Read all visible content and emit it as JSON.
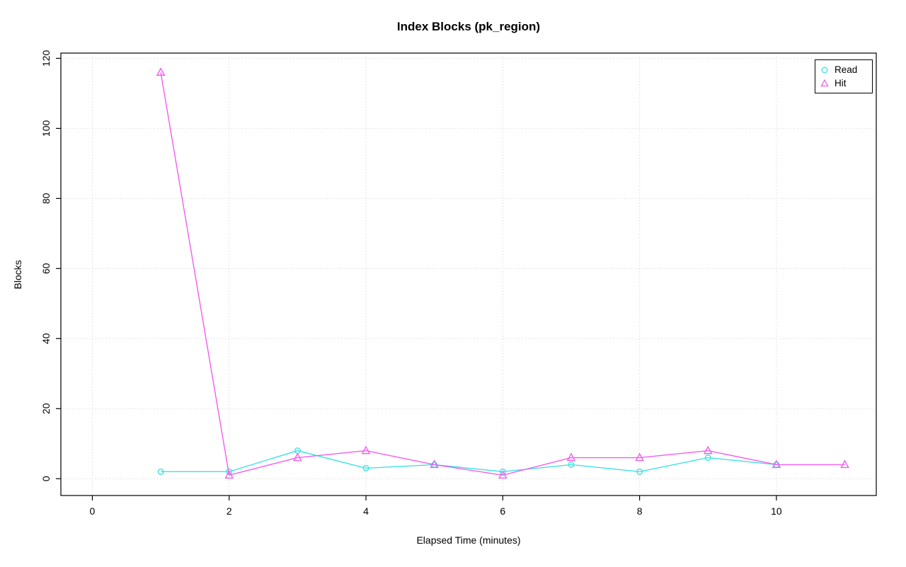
{
  "title": "Index Blocks (pk_region)",
  "chart_data": {
    "type": "line",
    "title": "Index Blocks (pk_region)",
    "xlabel": "Elapsed Time (minutes)",
    "ylabel": "Blocks",
    "x_ticks": [
      0,
      2,
      4,
      6,
      8,
      10
    ],
    "y_ticks": [
      0,
      20,
      40,
      60,
      80,
      100,
      120
    ],
    "xlim": [
      -0.46,
      11.46
    ],
    "ylim": [
      -4.8,
      121.5
    ],
    "grid": true,
    "grid_style": "dotted",
    "grid_color": "#d2d2d2",
    "legend_position": "top-right",
    "series": [
      {
        "name": "Read",
        "marker": "circle",
        "color": "#3fe2e2",
        "x": [
          1,
          2,
          3,
          4,
          5,
          6,
          7,
          8,
          9,
          10
        ],
        "y": [
          2,
          2,
          8,
          3,
          4,
          2,
          4,
          2,
          6,
          4
        ]
      },
      {
        "name": "Hit",
        "marker": "triangle",
        "color": "#f15def",
        "x": [
          1,
          2,
          3,
          4,
          5,
          6,
          7,
          8,
          9,
          10,
          11
        ],
        "y": [
          116,
          1,
          6,
          8,
          4,
          1,
          6,
          6,
          8,
          4,
          4
        ]
      }
    ]
  }
}
